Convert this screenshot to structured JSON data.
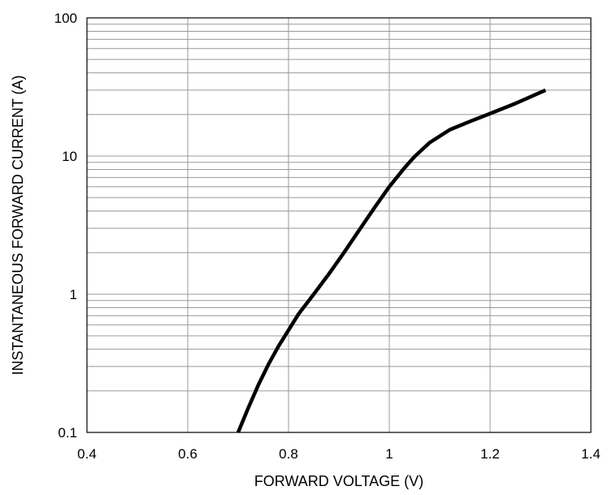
{
  "chart_data": {
    "type": "line",
    "title": "",
    "xlabel": "FORWARD VOLTAGE (V)",
    "ylabel": "INSTANTANEOUS FORWARD CURRENT (A)",
    "xlim": [
      0.4,
      1.4
    ],
    "ylim": [
      0.1,
      100
    ],
    "y_scale": "log",
    "x_ticks": [
      "0.4",
      "0.6",
      "0.8",
      "1",
      "1.2",
      "1.4"
    ],
    "y_ticks": [
      "0.1",
      "1",
      "10",
      "100"
    ],
    "grid": true,
    "line_color": "#000000",
    "series": [
      {
        "x": [
          0.7,
          0.72,
          0.74,
          0.76,
          0.78,
          0.8,
          0.82,
          0.85,
          0.88,
          0.91,
          0.94,
          0.97,
          1.0,
          1.03,
          1.05,
          1.08,
          1.12,
          1.16,
          1.2,
          1.25,
          1.31
        ],
        "y": [
          0.1,
          0.15,
          0.22,
          0.31,
          0.42,
          0.55,
          0.72,
          1.0,
          1.4,
          2.0,
          2.9,
          4.2,
          6.0,
          8.2,
          9.9,
          12.5,
          15.5,
          17.8,
          20.3,
          24.0,
          30.0
        ]
      }
    ]
  }
}
